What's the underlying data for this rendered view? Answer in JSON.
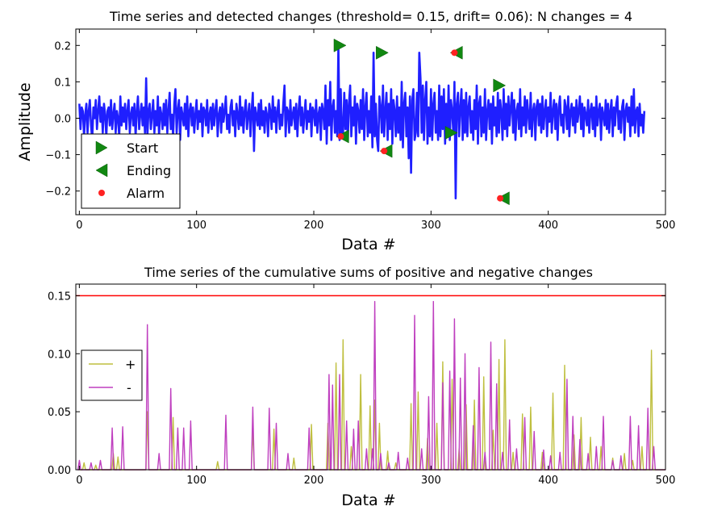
{
  "figure": {
    "background": "#ffffff"
  },
  "chart_data": [
    {
      "type": "line",
      "title": "Time series and detected changes (threshold= 0.15, drift= 0.06): N changes = 4",
      "xlabel": "Data #",
      "ylabel": "Amplitude",
      "xlim": [
        -3,
        500
      ],
      "ylim": [
        -0.265,
        0.245
      ],
      "xticks": [
        0,
        100,
        200,
        300,
        400,
        500
      ],
      "xtick_labels": [
        "0",
        "100",
        "200",
        "300",
        "400",
        "500"
      ],
      "yticks": [
        0.2,
        0.1,
        0.0,
        -0.1,
        -0.2
      ],
      "ytick_labels": [
        "0.2",
        "0.1",
        "0.0",
        "−0.1",
        "−0.2"
      ],
      "grid": false,
      "legend_position": "lower-left",
      "colors": {
        "signal": "#1f1fff",
        "start": "#118811",
        "ending": "#118811",
        "alarm": "#ff2222"
      },
      "series": [
        {
          "name": "",
          "kind": "line",
          "x_start": 0,
          "values": [
            0.04,
            -0.03,
            0.03,
            0.02,
            -0.05,
            0.01,
            0.04,
            -0.04,
            0.02,
            0.05,
            -0.02,
            -0.06,
            0.03,
            0.0,
            0.05,
            -0.03,
            0.02,
            0.06,
            -0.01,
            0.03,
            -0.04,
            0.04,
            0.01,
            -0.05,
            0.02,
            0.03,
            -0.02,
            0.05,
            -0.03,
            0.01,
            0.04,
            -0.04,
            0.02,
            0.0,
            -0.05,
            0.06,
            -0.02,
            0.03,
            -0.01,
            0.04,
            -0.03,
            0.02,
            0.05,
            -0.04,
            0.01,
            0.03,
            -0.02,
            0.04,
            -0.05,
            0.02,
            0.06,
            -0.03,
            0.01,
            0.04,
            -0.02,
            0.03,
            -0.04,
            0.11,
            -0.05,
            0.02,
            0.04,
            -0.03,
            0.01,
            0.05,
            -0.04,
            0.02,
            -0.02,
            0.06,
            -0.05,
            0.03,
            0.01,
            -0.03,
            0.04,
            -0.02,
            0.05,
            -0.04,
            0.02,
            0.07,
            -0.03,
            0.01,
            -0.05,
            0.04,
            0.08,
            -0.04,
            0.02,
            0.05,
            -0.06,
            0.03,
            0.01,
            -0.02,
            0.04,
            -0.03,
            0.06,
            -0.05,
            0.02,
            0.04,
            -0.02,
            0.03,
            -0.04,
            0.01,
            0.05,
            -0.03,
            0.02,
            -0.01,
            0.04,
            -0.05,
            0.03,
            0.02,
            -0.02,
            0.05,
            -0.04,
            0.01,
            0.03,
            -0.03,
            0.04,
            -0.02,
            0.02,
            0.05,
            -0.05,
            0.01,
            0.03,
            -0.04,
            0.04,
            -0.01,
            0.02,
            0.06,
            -0.03,
            0.01,
            -0.04,
            0.03,
            0.05,
            -0.02,
            0.02,
            -0.05,
            0.04,
            0.01,
            -0.03,
            0.06,
            -0.02,
            0.03,
            -0.04,
            0.02,
            0.05,
            -0.03,
            0.01,
            0.04,
            -0.05,
            0.02,
            0.07,
            -0.09,
            0.03,
            0.01,
            -0.02,
            0.04,
            -0.03,
            0.05,
            -0.02,
            0.02,
            -0.04,
            0.03,
            0.01,
            -0.05,
            0.04,
            0.02,
            -0.03,
            0.06,
            -0.01,
            0.03,
            -0.04,
            0.02,
            0.05,
            -0.03,
            0.01,
            -0.02,
            0.04,
            0.09,
            -0.05,
            0.03,
            0.02,
            -0.04,
            0.05,
            -0.02,
            0.01,
            0.03,
            -0.03,
            0.04,
            -0.05,
            0.02,
            0.06,
            -0.02,
            0.03,
            -0.04,
            0.01,
            0.05,
            -0.03,
            0.02,
            -0.01,
            0.04,
            -0.05,
            0.03,
            0.02,
            -0.02,
            0.05,
            -0.04,
            0.01,
            0.03,
            -0.06,
            0.04,
            0.02,
            -0.03,
            0.09,
            -0.07,
            0.05,
            -0.02,
            0.1,
            -0.06,
            0.03,
            0.05,
            -0.04,
            0.02,
            -0.05,
            0.2,
            -0.06,
            0.08,
            -0.05,
            -0.04,
            0.07,
            -0.03,
            0.05,
            -0.06,
            0.04,
            0.09,
            -0.05,
            0.03,
            -0.02,
            0.06,
            -0.07,
            0.04,
            0.02,
            -0.04,
            0.05,
            -0.03,
            0.08,
            -0.06,
            0.03,
            0.07,
            -0.05,
            0.02,
            -0.04,
            0.06,
            -0.08,
            0.18,
            -0.05,
            0.04,
            -0.06,
            -0.09,
            0.06,
            0.03,
            -0.04,
            0.09,
            -0.05,
            0.02,
            0.07,
            -0.06,
            0.04,
            -0.03,
            0.08,
            -0.07,
            0.05,
            0.02,
            -0.05,
            0.06,
            -0.04,
            0.03,
            -0.06,
            0.1,
            -0.08,
            0.04,
            0.07,
            -0.05,
            0.03,
            -0.11,
            0.06,
            -0.15,
            0.05,
            0.08,
            -0.06,
            -0.04,
            0.07,
            -0.05,
            0.18,
            0.11,
            -0.04,
            0.09,
            -0.06,
            0.05,
            0.1,
            -0.07,
            0.03,
            -0.05,
            0.08,
            -0.06,
            0.04,
            0.07,
            -0.04,
            0.02,
            -0.06,
            0.09,
            -0.05,
            0.06,
            -0.03,
            0.08,
            -0.07,
            0.04,
            -0.05,
            0.09,
            -0.06,
            0.05,
            0.02,
            -0.04,
            0.1,
            -0.22,
            0.04,
            0.07,
            -0.05,
            0.03,
            0.08,
            -0.06,
            0.05,
            -0.04,
            0.07,
            -0.05,
            0.03,
            0.06,
            -0.04,
            0.02,
            -0.06,
            0.05,
            -0.03,
            0.09,
            -0.07,
            0.04,
            0.06,
            -0.05,
            0.03,
            -0.04,
            0.08,
            -0.06,
            0.02,
            0.05,
            -0.03,
            0.04,
            -0.07,
            0.06,
            -0.02,
            0.03,
            -0.05,
            0.07,
            -0.04,
            0.05,
            0.02,
            -0.06,
            0.08,
            -0.03,
            0.04,
            -0.05,
            0.06,
            -0.02,
            0.03,
            0.07,
            -0.04,
            0.05,
            -0.06,
            0.02,
            0.04,
            -0.03,
            0.08,
            -0.05,
            0.03,
            -0.02,
            0.06,
            -0.04,
            0.05,
            0.01,
            -0.03,
            0.07,
            -0.05,
            0.02,
            0.04,
            -0.06,
            0.03,
            0.05,
            -0.02,
            0.04,
            -0.04,
            0.06,
            -0.03,
            0.02,
            0.05,
            -0.05,
            0.03,
            -0.01,
            0.07,
            -0.04,
            0.02,
            0.05,
            -0.03,
            0.04,
            -0.06,
            0.03,
            0.06,
            -0.02,
            0.01,
            -0.04,
            0.05,
            0.03,
            -0.03,
            0.06,
            -0.05,
            0.02,
            0.04,
            -0.02,
            0.03,
            -0.04,
            0.05,
            -0.01,
            0.02,
            0.06,
            -0.03,
            0.04,
            -0.05,
            0.03,
            0.01,
            -0.02,
            0.05,
            -0.04,
            0.02,
            0.04,
            -0.03,
            0.03,
            -0.05,
            0.06,
            -0.02,
            0.02,
            0.04,
            -0.06,
            0.03,
            0.01,
            -0.02,
            0.05,
            -0.03,
            0.04,
            -0.04,
            0.02,
            0.05,
            -0.05,
            0.03,
            -0.02,
            0.04,
            0.06,
            -0.03,
            0.02,
            -0.04,
            0.03,
            0.05,
            -0.06,
            0.02,
            0.04,
            -0.01,
            0.03,
            -0.05,
            0.06,
            -0.02,
            0.08,
            -0.04,
            0.02,
            0.03,
            -0.05,
            0.04,
            -0.02,
            0.01,
            -0.04,
            0.02
          ]
        },
        {
          "name": "Start",
          "kind": "marker",
          "marker": "triangle-right",
          "x": [
            222,
            258,
            317,
            358
          ],
          "y": [
            0.2,
            0.18,
            -0.04,
            0.09
          ]
        },
        {
          "name": "Ending",
          "kind": "marker",
          "marker": "triangle-left",
          "x": [
            225,
            262,
            322,
            362
          ],
          "y": [
            -0.05,
            -0.09,
            0.18,
            -0.22
          ]
        },
        {
          "name": "Alarm",
          "kind": "marker",
          "marker": "dot",
          "x": [
            223,
            260,
            320,
            359
          ],
          "y": [
            -0.05,
            -0.09,
            0.18,
            -0.22
          ]
        }
      ]
    },
    {
      "type": "line",
      "title": "Time series of the cumulative sums of positive and negative changes",
      "xlabel": "Data #",
      "ylabel": "",
      "xlim": [
        -3,
        500
      ],
      "ylim": [
        0,
        0.16
      ],
      "xticks": [
        0,
        100,
        200,
        300,
        400,
        500
      ],
      "xtick_labels": [
        "0",
        "100",
        "200",
        "300",
        "400",
        "500"
      ],
      "yticks": [
        0.15,
        0.1,
        0.05,
        0.0
      ],
      "ytick_labels": [
        "0.15",
        "0.10",
        "0.05",
        "0.00"
      ],
      "grid": false,
      "legend_position": "center-left",
      "threshold": 0.15,
      "colors": {
        "plus": "#bfbf3f",
        "minus": "#bf3fbf",
        "threshold": "#ff0000"
      },
      "series": [
        {
          "name": "+",
          "kind": "spikes",
          "x": [
            4,
            14,
            29,
            33,
            58,
            80,
            118,
            148,
            166,
            183,
            198,
            212,
            219,
            225,
            232,
            240,
            248,
            252,
            256,
            263,
            270,
            283,
            289,
            297,
            305,
            310,
            318,
            324,
            330,
            337,
            345,
            353,
            358,
            363,
            370,
            378,
            385,
            395,
            404,
            414,
            422,
            428,
            436,
            445,
            455,
            465,
            472,
            480,
            488
          ],
          "values": [
            0.006,
            0.004,
            0.014,
            0.011,
            0.05,
            0.045,
            0.007,
            0.036,
            0.035,
            0.01,
            0.039,
            0.04,
            0.092,
            0.112,
            0.02,
            0.082,
            0.055,
            0.06,
            0.04,
            0.016,
            0.006,
            0.057,
            0.067,
            0.027,
            0.04,
            0.093,
            0.078,
            0.018,
            0.056,
            0.06,
            0.08,
            0.034,
            0.095,
            0.112,
            0.015,
            0.048,
            0.054,
            0.015,
            0.066,
            0.09,
            0.03,
            0.045,
            0.028,
            0.02,
            0.01,
            0.014,
            0.008,
            0.02,
            0.103
          ]
        },
        {
          "name": "-",
          "kind": "spikes",
          "x": [
            0,
            10,
            18,
            28,
            37,
            58,
            68,
            78,
            84,
            89,
            95,
            125,
            148,
            162,
            168,
            178,
            196,
            213,
            216,
            222,
            228,
            234,
            238,
            245,
            250,
            252,
            257,
            264,
            272,
            280,
            286,
            292,
            298,
            302,
            310,
            316,
            320,
            325,
            329,
            336,
            341,
            346,
            351,
            356,
            361,
            367,
            373,
            380,
            388,
            396,
            402,
            410,
            416,
            421,
            427,
            434,
            441,
            447,
            455,
            462,
            470,
            477,
            485,
            490
          ],
          "values": [
            0.008,
            0.006,
            0.008,
            0.036,
            0.037,
            0.125,
            0.014,
            0.07,
            0.036,
            0.036,
            0.042,
            0.047,
            0.054,
            0.053,
            0.04,
            0.014,
            0.036,
            0.082,
            0.073,
            0.082,
            0.042,
            0.035,
            0.042,
            0.018,
            0.018,
            0.145,
            0.014,
            0.006,
            0.015,
            0.01,
            0.133,
            0.018,
            0.063,
            0.145,
            0.075,
            0.085,
            0.13,
            0.079,
            0.1,
            0.038,
            0.088,
            0.015,
            0.11,
            0.074,
            0.015,
            0.043,
            0.018,
            0.045,
            0.033,
            0.017,
            0.012,
            0.015,
            0.078,
            0.046,
            0.026,
            0.014,
            0.02,
            0.046,
            0.008,
            0.012,
            0.046,
            0.038,
            0.053,
            0.02
          ]
        }
      ]
    }
  ]
}
